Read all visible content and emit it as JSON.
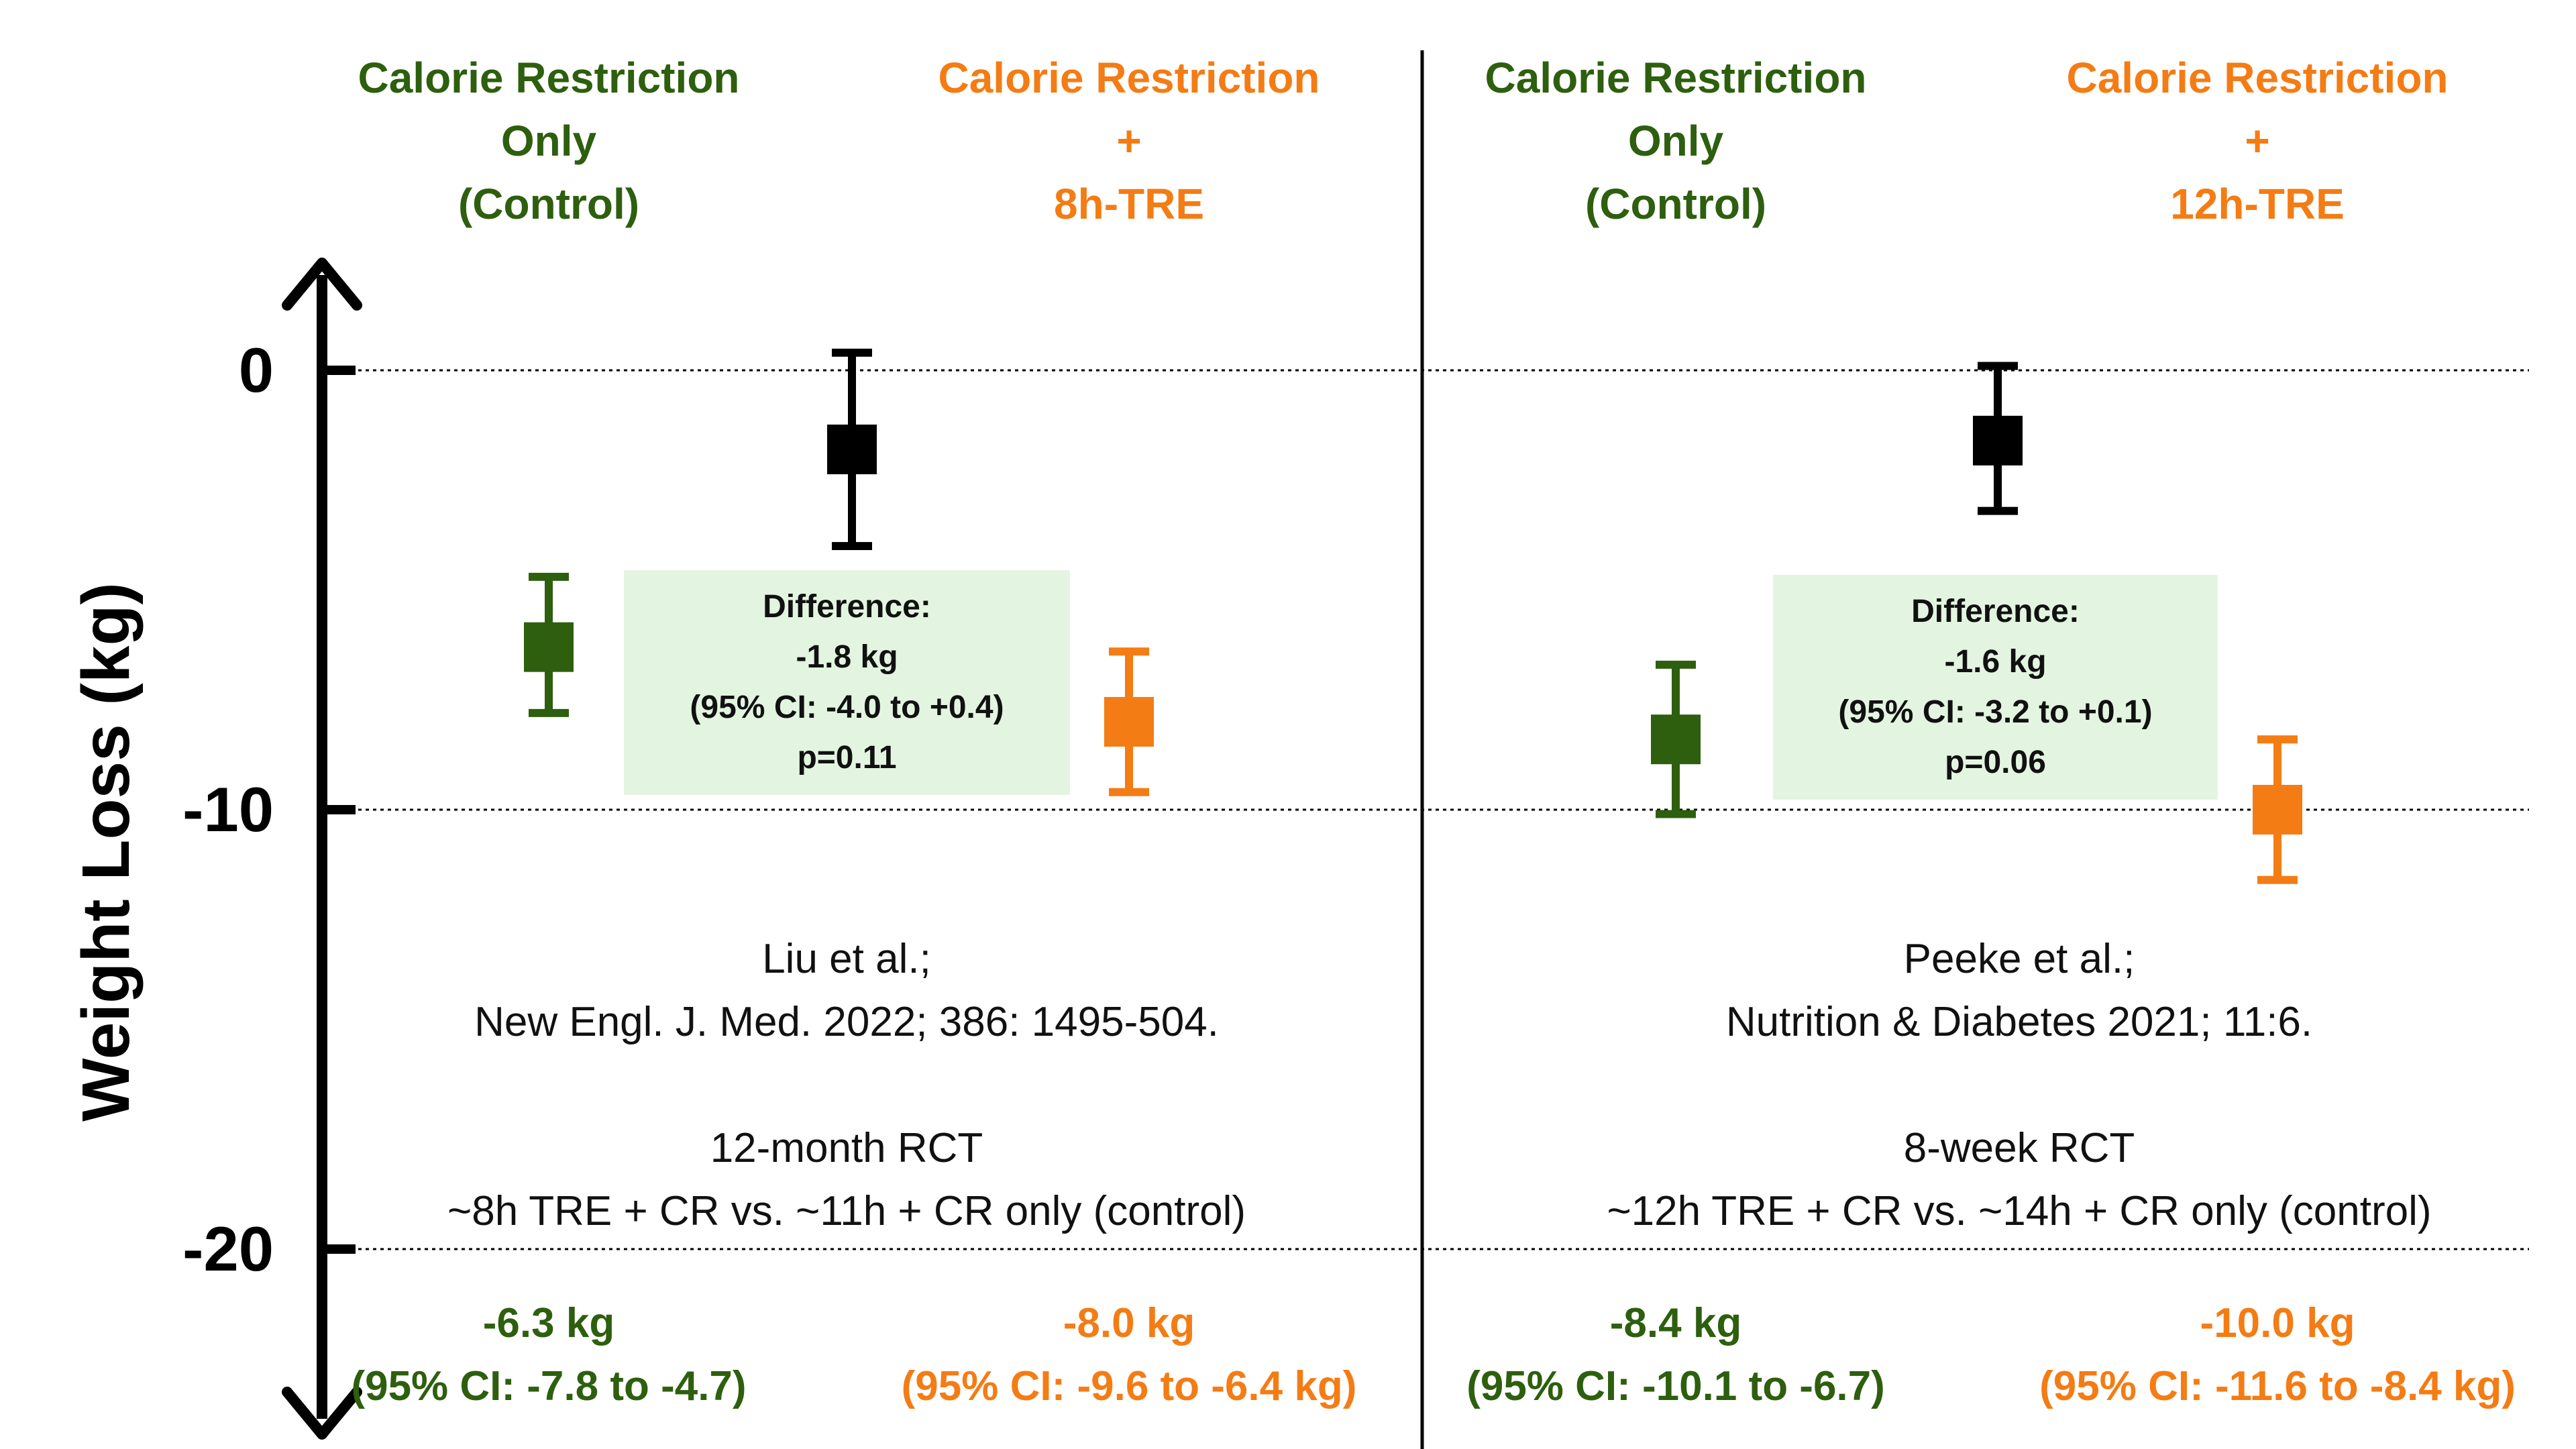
{
  "colors": {
    "control": "#2d5f0e",
    "tre": "#f47c14",
    "difference": "#000000",
    "diff_box": "#e3f5e1",
    "axis": "#000000"
  },
  "chart_data": {
    "type": "scatter",
    "ylabel": "Weight Loss (kg)",
    "ylim": [
      -24,
      2.5
    ],
    "yticks": [
      0,
      -10,
      -20
    ],
    "ytick_labels": [
      "0",
      "-10",
      "-20"
    ],
    "grid": "dotted horizontal at 0, -10, -20",
    "panels": [
      {
        "headers": [
          {
            "lines": [
              "Calorie Restriction",
              "Only",
              "(Control)"
            ],
            "color": "#2d5f0e"
          },
          {
            "lines": [
              "Calorie Restriction",
              "+",
              "8h-TRE"
            ],
            "color": "#f47c14"
          }
        ],
        "points": [
          {
            "group": "control",
            "value": -6.3,
            "ci": [
              -7.8,
              -4.7
            ]
          },
          {
            "group": "difference",
            "value": -1.8,
            "ci": [
              -4.0,
              0.4
            ]
          },
          {
            "group": "tre",
            "value": -8.0,
            "ci": [
              -9.6,
              -6.4
            ]
          }
        ],
        "difference_box": [
          "Difference:",
          "-1.8 kg",
          "(95% CI: -4.0 to +0.4)",
          "p=0.11"
        ],
        "citation": [
          "Liu et al.;",
          "New Engl. J. Med. 2022;  386: 1495-504."
        ],
        "design": [
          "12-month RCT",
          "~8h TRE + CR vs. ~11h + CR only (control)"
        ],
        "summaries": [
          {
            "lines": [
              "-6.3 kg",
              "(95% CI: -7.8 to -4.7)"
            ],
            "color": "#2d5f0e"
          },
          {
            "lines": [
              "-8.0 kg",
              "(95% CI: -9.6 to -6.4 kg)"
            ],
            "color": "#f47c14"
          }
        ]
      },
      {
        "headers": [
          {
            "lines": [
              "Calorie Restriction",
              "Only",
              "(Control)"
            ],
            "color": "#2d5f0e"
          },
          {
            "lines": [
              "Calorie Restriction",
              "+",
              "12h-TRE"
            ],
            "color": "#f47c14"
          }
        ],
        "points": [
          {
            "group": "control",
            "value": -8.4,
            "ci": [
              -10.1,
              -6.7
            ]
          },
          {
            "group": "difference",
            "value": -1.6,
            "ci": [
              -3.2,
              0.1
            ]
          },
          {
            "group": "tre",
            "value": -10.0,
            "ci": [
              -11.6,
              -8.4
            ]
          }
        ],
        "difference_box": [
          "Difference:",
          "-1.6 kg",
          "(95% CI: -3.2 to +0.1)",
          "p=0.06"
        ],
        "citation": [
          "Peeke et al.;",
          "Nutrition & Diabetes 2021; 11:6."
        ],
        "design": [
          "8-week RCT",
          "~12h TRE + CR vs. ~14h + CR only (control)"
        ],
        "summaries": [
          {
            "lines": [
              "-8.4 kg",
              "(95% CI: -10.1 to -6.7)"
            ],
            "color": "#2d5f0e"
          },
          {
            "lines": [
              "-10.0 kg",
              "(95% CI: -11.6 to -8.4 kg)"
            ],
            "color": "#f47c14"
          }
        ]
      }
    ]
  }
}
